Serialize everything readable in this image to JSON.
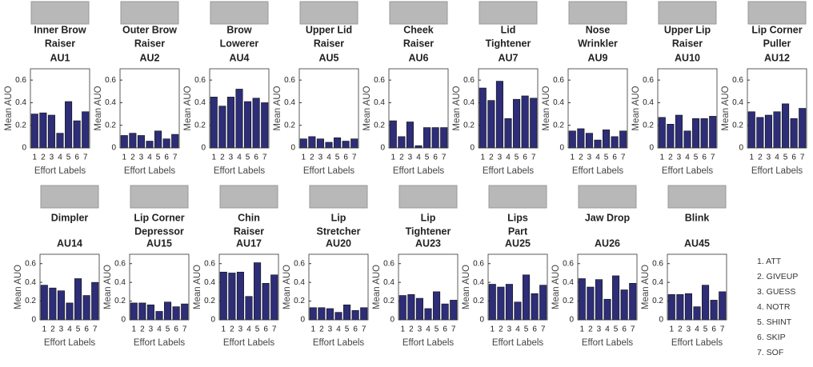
{
  "chart_data": [
    {
      "type": "bar",
      "title": [
        "Inner Brow",
        "Raiser"
      ],
      "subtitle": "AU1",
      "ylabel": "Mean AUO",
      "xlabel": "Effort Labels",
      "categories": [
        "1",
        "2",
        "3",
        "4",
        "5",
        "6",
        "7"
      ],
      "values": [
        0.3,
        0.31,
        0.29,
        0.13,
        0.41,
        0.24,
        0.32
      ],
      "ylim": [
        0,
        0.7
      ],
      "yticks": [
        0,
        0.2,
        0.4,
        0.6
      ],
      "color": "#2d2d78"
    },
    {
      "type": "bar",
      "title": [
        "Outer Brow",
        "Raiser"
      ],
      "subtitle": "AU2",
      "ylabel": "Mean AUO",
      "xlabel": "Effort Labels",
      "categories": [
        "1",
        "2",
        "3",
        "4",
        "5",
        "6",
        "7"
      ],
      "values": [
        0.11,
        0.13,
        0.11,
        0.06,
        0.15,
        0.08,
        0.12
      ],
      "ylim": [
        0,
        0.7
      ],
      "yticks": [
        0,
        0.2,
        0.4,
        0.6
      ],
      "color": "#2d2d78"
    },
    {
      "type": "bar",
      "title": [
        "Brow",
        "Lowerer"
      ],
      "subtitle": "AU4",
      "ylabel": "Mean AUO",
      "xlabel": "Effort Labels",
      "categories": [
        "1",
        "2",
        "3",
        "4",
        "5",
        "6",
        "7"
      ],
      "values": [
        0.45,
        0.37,
        0.45,
        0.52,
        0.41,
        0.44,
        0.4
      ],
      "ylim": [
        0,
        0.7
      ],
      "yticks": [
        0,
        0.2,
        0.4,
        0.6
      ],
      "color": "#2d2d78"
    },
    {
      "type": "bar",
      "title": [
        "Upper Lid",
        "Raiser"
      ],
      "subtitle": "AU5",
      "ylabel": "Mean AUO",
      "xlabel": "Effort Labels",
      "categories": [
        "1",
        "2",
        "3",
        "4",
        "5",
        "6",
        "7"
      ],
      "values": [
        0.08,
        0.1,
        0.08,
        0.05,
        0.09,
        0.06,
        0.08
      ],
      "ylim": [
        0,
        0.7
      ],
      "yticks": [
        0,
        0.2,
        0.4,
        0.6
      ],
      "color": "#2d2d78"
    },
    {
      "type": "bar",
      "title": [
        "Cheek",
        "Raiser"
      ],
      "subtitle": "AU6",
      "ylabel": "Mean AUO",
      "xlabel": "Effort Labels",
      "categories": [
        "1",
        "2",
        "3",
        "4",
        "5",
        "6",
        "7"
      ],
      "values": [
        0.24,
        0.1,
        0.23,
        0.02,
        0.18,
        0.18,
        0.18
      ],
      "ylim": [
        0,
        0.7
      ],
      "yticks": [
        0,
        0.2,
        0.4,
        0.6
      ],
      "color": "#2d2d78"
    },
    {
      "type": "bar",
      "title": [
        "Lid",
        "Tightener"
      ],
      "subtitle": "AU7",
      "ylabel": "Mean AUO",
      "xlabel": "Effort Labels",
      "categories": [
        "1",
        "2",
        "3",
        "4",
        "5",
        "6",
        "7"
      ],
      "values": [
        0.53,
        0.42,
        0.59,
        0.26,
        0.43,
        0.46,
        0.44
      ],
      "ylim": [
        0,
        0.7
      ],
      "yticks": [
        0,
        0.2,
        0.4,
        0.6
      ],
      "color": "#2d2d78"
    },
    {
      "type": "bar",
      "title": [
        "Nose",
        "Wrinkler"
      ],
      "subtitle": "AU9",
      "ylabel": "Mean AUO",
      "xlabel": "Effort Labels",
      "categories": [
        "1",
        "2",
        "3",
        "4",
        "5",
        "6",
        "7"
      ],
      "values": [
        0.15,
        0.17,
        0.13,
        0.07,
        0.16,
        0.1,
        0.15
      ],
      "ylim": [
        0,
        0.7
      ],
      "yticks": [
        0,
        0.2,
        0.4,
        0.6
      ],
      "color": "#2d2d78"
    },
    {
      "type": "bar",
      "title": [
        "Upper Lip",
        "Raiser"
      ],
      "subtitle": "AU10",
      "ylabel": "Mean AUO",
      "xlabel": "Effort Labels",
      "categories": [
        "1",
        "2",
        "3",
        "4",
        "5",
        "6",
        "7"
      ],
      "values": [
        0.27,
        0.21,
        0.29,
        0.15,
        0.26,
        0.26,
        0.28
      ],
      "ylim": [
        0,
        0.7
      ],
      "yticks": [
        0,
        0.2,
        0.4,
        0.6
      ],
      "color": "#2d2d78"
    },
    {
      "type": "bar",
      "title": [
        "Lip Corner",
        "Puller"
      ],
      "subtitle": "AU12",
      "ylabel": "Mean AUO",
      "xlabel": "Effort Labels",
      "categories": [
        "1",
        "2",
        "3",
        "4",
        "5",
        "6",
        "7"
      ],
      "values": [
        0.32,
        0.27,
        0.29,
        0.32,
        0.39,
        0.26,
        0.35
      ],
      "ylim": [
        0,
        0.7
      ],
      "yticks": [
        0,
        0.2,
        0.4,
        0.6
      ],
      "color": "#2d2d78"
    },
    {
      "type": "bar",
      "title": [
        "Dimpler"
      ],
      "subtitle": "AU14",
      "ylabel": "Mean AUO",
      "xlabel": "Effort Labels",
      "categories": [
        "1",
        "2",
        "3",
        "4",
        "5",
        "6",
        "7"
      ],
      "values": [
        0.37,
        0.34,
        0.31,
        0.18,
        0.44,
        0.26,
        0.4
      ],
      "ylim": [
        0,
        0.7
      ],
      "yticks": [
        0,
        0.2,
        0.4,
        0.6
      ],
      "color": "#2d2d78"
    },
    {
      "type": "bar",
      "title": [
        "Lip Corner",
        "Depressor"
      ],
      "subtitle": "AU15",
      "ylabel": "Mean AUO",
      "xlabel": "Effort Labels",
      "categories": [
        "1",
        "2",
        "3",
        "4",
        "5",
        "6",
        "7"
      ],
      "values": [
        0.18,
        0.18,
        0.16,
        0.09,
        0.19,
        0.14,
        0.17
      ],
      "ylim": [
        0,
        0.7
      ],
      "yticks": [
        0,
        0.2,
        0.4,
        0.6
      ],
      "color": "#2d2d78"
    },
    {
      "type": "bar",
      "title": [
        "Chin",
        "Raiser"
      ],
      "subtitle": "AU17",
      "ylabel": "Mean AUO",
      "xlabel": "Effort Labels",
      "categories": [
        "1",
        "2",
        "3",
        "4",
        "5",
        "6",
        "7"
      ],
      "values": [
        0.51,
        0.5,
        0.51,
        0.25,
        0.61,
        0.39,
        0.48
      ],
      "ylim": [
        0,
        0.7
      ],
      "yticks": [
        0,
        0.2,
        0.4,
        0.6
      ],
      "color": "#2d2d78"
    },
    {
      "type": "bar",
      "title": [
        "Lip",
        "Stretcher"
      ],
      "subtitle": "AU20",
      "ylabel": "Mean AUO",
      "xlabel": "Effort Labels",
      "categories": [
        "1",
        "2",
        "3",
        "4",
        "5",
        "6",
        "7"
      ],
      "values": [
        0.13,
        0.13,
        0.12,
        0.08,
        0.16,
        0.1,
        0.13
      ],
      "ylim": [
        0,
        0.7
      ],
      "yticks": [
        0,
        0.2,
        0.4,
        0.6
      ],
      "color": "#2d2d78"
    },
    {
      "type": "bar",
      "title": [
        "Lip",
        "Tightener"
      ],
      "subtitle": "AU23",
      "ylabel": "Mean AUO",
      "xlabel": "Effort Labels",
      "categories": [
        "1",
        "2",
        "3",
        "4",
        "5",
        "6",
        "7"
      ],
      "values": [
        0.26,
        0.27,
        0.23,
        0.12,
        0.3,
        0.17,
        0.21
      ],
      "ylim": [
        0,
        0.7
      ],
      "yticks": [
        0,
        0.2,
        0.4,
        0.6
      ],
      "color": "#2d2d78"
    },
    {
      "type": "bar",
      "title": [
        "Lips",
        "Part"
      ],
      "subtitle": "AU25",
      "ylabel": "Mean AUO",
      "xlabel": "Effort Labels",
      "categories": [
        "1",
        "2",
        "3",
        "4",
        "5",
        "6",
        "7"
      ],
      "values": [
        0.38,
        0.35,
        0.38,
        0.19,
        0.48,
        0.28,
        0.37
      ],
      "ylim": [
        0,
        0.7
      ],
      "yticks": [
        0,
        0.2,
        0.4,
        0.6
      ],
      "color": "#2d2d78"
    },
    {
      "type": "bar",
      "title": [
        "Jaw Drop"
      ],
      "subtitle": "AU26",
      "ylabel": "Mean AUO",
      "xlabel": "Effort Labels",
      "categories": [
        "1",
        "2",
        "3",
        "4",
        "5",
        "6",
        "7"
      ],
      "values": [
        0.44,
        0.35,
        0.43,
        0.22,
        0.47,
        0.32,
        0.39
      ],
      "ylim": [
        0,
        0.7
      ],
      "yticks": [
        0,
        0.2,
        0.4,
        0.6
      ],
      "color": "#2d2d78"
    },
    {
      "type": "bar",
      "title": [
        "Blink"
      ],
      "subtitle": "AU45",
      "ylabel": "Mean AUO",
      "xlabel": "Effort Labels",
      "categories": [
        "1",
        "2",
        "3",
        "4",
        "5",
        "6",
        "7"
      ],
      "values": [
        0.27,
        0.27,
        0.28,
        0.14,
        0.37,
        0.21,
        0.3
      ],
      "ylim": [
        0,
        0.7
      ],
      "yticks": [
        0,
        0.2,
        0.4,
        0.6
      ],
      "color": "#2d2d78"
    }
  ],
  "effort_legend": [
    "1. ATT",
    "2. GIVEUP",
    "3. GUESS",
    "4. NOTR",
    "5. SHINT",
    "6. SKIP",
    "7. SOF"
  ]
}
